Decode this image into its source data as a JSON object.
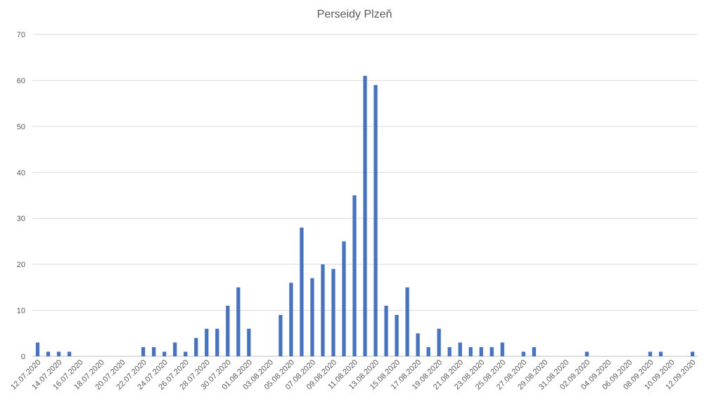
{
  "chart_data": {
    "type": "bar",
    "title": "Perseidy Plzeň",
    "xlabel": "",
    "ylabel": "",
    "ylim": [
      0,
      70
    ],
    "yticks": [
      0,
      10,
      20,
      30,
      40,
      50,
      60,
      70
    ],
    "grid": true,
    "legend": "none",
    "bar_color": "#4472C4",
    "categories": [
      "12.07.2020",
      "13.07.2020",
      "14.07.2020",
      "15.07.2020",
      "16.07.2020",
      "17.07.2020",
      "18.07.2020",
      "19.07.2020",
      "20.07.2020",
      "21.07.2020",
      "22.07.2020",
      "23.07.2020",
      "24.07.2020",
      "25.07.2020",
      "26.07.2020",
      "27.07.2020",
      "28.07.2020",
      "29.07.2020",
      "30.07.2020",
      "31.07.2020",
      "01.08.2020",
      "02.08.2020",
      "03.08.2020",
      "04.08.2020",
      "05.08.2020",
      "06.08.2020",
      "07.08.2020",
      "08.08.2020",
      "09.08.2020",
      "10.08.2020",
      "11.08.2020",
      "12.08.2020",
      "13.08.2020",
      "14.08.2020",
      "15.08.2020",
      "16.08.2020",
      "17.08.2020",
      "18.08.2020",
      "19.08.2020",
      "20.08.2020",
      "21.08.2020",
      "22.08.2020",
      "23.08.2020",
      "24.08.2020",
      "25.08.2020",
      "26.08.2020",
      "27.08.2020",
      "28.08.2020",
      "29.08.2020",
      "30.08.2020",
      "31.08.2020",
      "01.09.2020",
      "02.09.2020",
      "03.09.2020",
      "04.09.2020",
      "05.09.2020",
      "06.09.2020",
      "07.09.2020",
      "08.09.2020",
      "09.09.2020",
      "10.09.2020",
      "11.09.2020",
      "12.09.2020"
    ],
    "tick_labels": [
      "12.07.2020",
      "14.07.2020",
      "16.07.2020",
      "18.07.2020",
      "20.07.2020",
      "22.07.2020",
      "24.07.2020",
      "26.07.2020",
      "28.07.2020",
      "30.07.2020",
      "01.08.2020",
      "03.08.2020",
      "05.08.2020",
      "07.08.2020",
      "09.08.2020",
      "11.08.2020",
      "13.08.2020",
      "15.08.2020",
      "17.08.2020",
      "19.08.2020",
      "21.08.2020",
      "23.08.2020",
      "25.08.2020",
      "27.08.2020",
      "29.08.2020",
      "31.08.2020",
      "02.09.2020",
      "04.09.2020",
      "06.09.2020",
      "08.09.2020",
      "10.09.2020",
      "12.09.2020"
    ],
    "values": [
      3,
      1,
      1,
      1,
      0,
      0,
      0,
      0,
      0,
      0,
      2,
      2,
      1,
      3,
      1,
      4,
      6,
      6,
      11,
      15,
      6,
      0,
      0,
      9,
      16,
      28,
      17,
      20,
      19,
      25,
      35,
      61,
      59,
      11,
      9,
      15,
      5,
      2,
      6,
      2,
      3,
      2,
      2,
      2,
      3,
      0,
      1,
      2,
      0,
      0,
      0,
      0,
      1,
      0,
      0,
      0,
      0,
      0,
      1,
      1,
      0,
      0,
      1
    ]
  }
}
